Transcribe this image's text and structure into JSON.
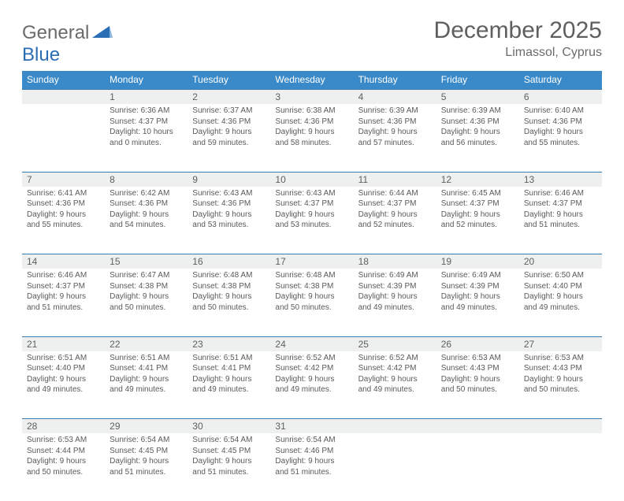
{
  "logo": {
    "general": "General",
    "blue": "Blue"
  },
  "title": "December 2025",
  "location": "Limassol, Cyprus",
  "colors": {
    "header_bg": "#3a8ac9",
    "header_text": "#ffffff",
    "row_divider": "#3a7bb0",
    "num_bg": "#eef0f0",
    "body_text": "#5a5a5a",
    "title_text": "#5f5f5f",
    "logo_general": "#6b6b6b",
    "logo_blue": "#2a6db5"
  },
  "day_headers": [
    "Sunday",
    "Monday",
    "Tuesday",
    "Wednesday",
    "Thursday",
    "Friday",
    "Saturday"
  ],
  "weeks": [
    [
      null,
      {
        "n": "1",
        "sr": "Sunrise: 6:36 AM",
        "ss": "Sunset: 4:37 PM",
        "d1": "Daylight: 10 hours",
        "d2": "and 0 minutes."
      },
      {
        "n": "2",
        "sr": "Sunrise: 6:37 AM",
        "ss": "Sunset: 4:36 PM",
        "d1": "Daylight: 9 hours",
        "d2": "and 59 minutes."
      },
      {
        "n": "3",
        "sr": "Sunrise: 6:38 AM",
        "ss": "Sunset: 4:36 PM",
        "d1": "Daylight: 9 hours",
        "d2": "and 58 minutes."
      },
      {
        "n": "4",
        "sr": "Sunrise: 6:39 AM",
        "ss": "Sunset: 4:36 PM",
        "d1": "Daylight: 9 hours",
        "d2": "and 57 minutes."
      },
      {
        "n": "5",
        "sr": "Sunrise: 6:39 AM",
        "ss": "Sunset: 4:36 PM",
        "d1": "Daylight: 9 hours",
        "d2": "and 56 minutes."
      },
      {
        "n": "6",
        "sr": "Sunrise: 6:40 AM",
        "ss": "Sunset: 4:36 PM",
        "d1": "Daylight: 9 hours",
        "d2": "and 55 minutes."
      }
    ],
    [
      {
        "n": "7",
        "sr": "Sunrise: 6:41 AM",
        "ss": "Sunset: 4:36 PM",
        "d1": "Daylight: 9 hours",
        "d2": "and 55 minutes."
      },
      {
        "n": "8",
        "sr": "Sunrise: 6:42 AM",
        "ss": "Sunset: 4:36 PM",
        "d1": "Daylight: 9 hours",
        "d2": "and 54 minutes."
      },
      {
        "n": "9",
        "sr": "Sunrise: 6:43 AM",
        "ss": "Sunset: 4:36 PM",
        "d1": "Daylight: 9 hours",
        "d2": "and 53 minutes."
      },
      {
        "n": "10",
        "sr": "Sunrise: 6:43 AM",
        "ss": "Sunset: 4:37 PM",
        "d1": "Daylight: 9 hours",
        "d2": "and 53 minutes."
      },
      {
        "n": "11",
        "sr": "Sunrise: 6:44 AM",
        "ss": "Sunset: 4:37 PM",
        "d1": "Daylight: 9 hours",
        "d2": "and 52 minutes."
      },
      {
        "n": "12",
        "sr": "Sunrise: 6:45 AM",
        "ss": "Sunset: 4:37 PM",
        "d1": "Daylight: 9 hours",
        "d2": "and 52 minutes."
      },
      {
        "n": "13",
        "sr": "Sunrise: 6:46 AM",
        "ss": "Sunset: 4:37 PM",
        "d1": "Daylight: 9 hours",
        "d2": "and 51 minutes."
      }
    ],
    [
      {
        "n": "14",
        "sr": "Sunrise: 6:46 AM",
        "ss": "Sunset: 4:37 PM",
        "d1": "Daylight: 9 hours",
        "d2": "and 51 minutes."
      },
      {
        "n": "15",
        "sr": "Sunrise: 6:47 AM",
        "ss": "Sunset: 4:38 PM",
        "d1": "Daylight: 9 hours",
        "d2": "and 50 minutes."
      },
      {
        "n": "16",
        "sr": "Sunrise: 6:48 AM",
        "ss": "Sunset: 4:38 PM",
        "d1": "Daylight: 9 hours",
        "d2": "and 50 minutes."
      },
      {
        "n": "17",
        "sr": "Sunrise: 6:48 AM",
        "ss": "Sunset: 4:38 PM",
        "d1": "Daylight: 9 hours",
        "d2": "and 50 minutes."
      },
      {
        "n": "18",
        "sr": "Sunrise: 6:49 AM",
        "ss": "Sunset: 4:39 PM",
        "d1": "Daylight: 9 hours",
        "d2": "and 49 minutes."
      },
      {
        "n": "19",
        "sr": "Sunrise: 6:49 AM",
        "ss": "Sunset: 4:39 PM",
        "d1": "Daylight: 9 hours",
        "d2": "and 49 minutes."
      },
      {
        "n": "20",
        "sr": "Sunrise: 6:50 AM",
        "ss": "Sunset: 4:40 PM",
        "d1": "Daylight: 9 hours",
        "d2": "and 49 minutes."
      }
    ],
    [
      {
        "n": "21",
        "sr": "Sunrise: 6:51 AM",
        "ss": "Sunset: 4:40 PM",
        "d1": "Daylight: 9 hours",
        "d2": "and 49 minutes."
      },
      {
        "n": "22",
        "sr": "Sunrise: 6:51 AM",
        "ss": "Sunset: 4:41 PM",
        "d1": "Daylight: 9 hours",
        "d2": "and 49 minutes."
      },
      {
        "n": "23",
        "sr": "Sunrise: 6:51 AM",
        "ss": "Sunset: 4:41 PM",
        "d1": "Daylight: 9 hours",
        "d2": "and 49 minutes."
      },
      {
        "n": "24",
        "sr": "Sunrise: 6:52 AM",
        "ss": "Sunset: 4:42 PM",
        "d1": "Daylight: 9 hours",
        "d2": "and 49 minutes."
      },
      {
        "n": "25",
        "sr": "Sunrise: 6:52 AM",
        "ss": "Sunset: 4:42 PM",
        "d1": "Daylight: 9 hours",
        "d2": "and 49 minutes."
      },
      {
        "n": "26",
        "sr": "Sunrise: 6:53 AM",
        "ss": "Sunset: 4:43 PM",
        "d1": "Daylight: 9 hours",
        "d2": "and 50 minutes."
      },
      {
        "n": "27",
        "sr": "Sunrise: 6:53 AM",
        "ss": "Sunset: 4:43 PM",
        "d1": "Daylight: 9 hours",
        "d2": "and 50 minutes."
      }
    ],
    [
      {
        "n": "28",
        "sr": "Sunrise: 6:53 AM",
        "ss": "Sunset: 4:44 PM",
        "d1": "Daylight: 9 hours",
        "d2": "and 50 minutes."
      },
      {
        "n": "29",
        "sr": "Sunrise: 6:54 AM",
        "ss": "Sunset: 4:45 PM",
        "d1": "Daylight: 9 hours",
        "d2": "and 51 minutes."
      },
      {
        "n": "30",
        "sr": "Sunrise: 6:54 AM",
        "ss": "Sunset: 4:45 PM",
        "d1": "Daylight: 9 hours",
        "d2": "and 51 minutes."
      },
      {
        "n": "31",
        "sr": "Sunrise: 6:54 AM",
        "ss": "Sunset: 4:46 PM",
        "d1": "Daylight: 9 hours",
        "d2": "and 51 minutes."
      },
      null,
      null,
      null
    ]
  ]
}
